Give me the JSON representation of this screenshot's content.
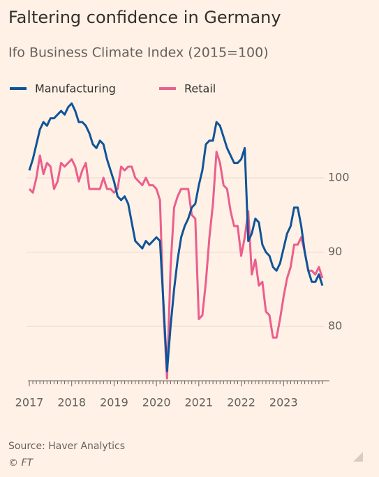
{
  "chart_data": {
    "type": "line",
    "title": "Faltering confidence in Germany",
    "subtitle": "Ifo Business Climate Index (2015=100)",
    "source": "Source: Haver Analytics",
    "credit": "© FT",
    "categories": [
      "2017",
      null,
      null,
      null,
      null,
      null,
      null,
      null,
      null,
      null,
      null,
      null,
      "2018",
      null,
      null,
      null,
      null,
      null,
      null,
      null,
      null,
      null,
      null,
      null,
      "2019",
      null,
      null,
      null,
      null,
      null,
      null,
      null,
      null,
      null,
      null,
      null,
      "2020",
      null,
      null,
      null,
      null,
      null,
      null,
      null,
      null,
      null,
      null,
      null,
      "2021",
      null,
      null,
      null,
      null,
      null,
      null,
      null,
      null,
      null,
      null,
      null,
      "2022",
      null,
      null,
      null,
      null,
      null,
      null,
      null,
      null,
      null,
      null,
      null,
      "2023",
      null,
      null,
      null,
      null,
      null,
      null,
      null,
      null,
      null,
      null,
      null
    ],
    "series": [
      {
        "name": "Manufacturing",
        "color": "#0f5499",
        "values": [
          101,
          102.5,
          104.5,
          106.5,
          107.5,
          107,
          108,
          108,
          108.5,
          109,
          108.5,
          109.5,
          110,
          109,
          107.5,
          107.5,
          107,
          106,
          104.5,
          104,
          105,
          104.5,
          102.5,
          101,
          99.5,
          97.5,
          97,
          97.5,
          96.5,
          94,
          91.5,
          91,
          90.5,
          91.5,
          91,
          91.5,
          92,
          91.5,
          83,
          74,
          80,
          85,
          89,
          92,
          93.5,
          94.5,
          96,
          96.5,
          99,
          101,
          104.5,
          105,
          105,
          107.5,
          107,
          105.5,
          104,
          103,
          102,
          102,
          102.5,
          104,
          91.5,
          92.5,
          94.5,
          94,
          91,
          90,
          89.5,
          88,
          87.5,
          88.5,
          90.5,
          92.5,
          93.5,
          96,
          96,
          93.5,
          90,
          87.5,
          86,
          86,
          87,
          85.5
        ]
      },
      {
        "name": "Retail",
        "color": "#eb5e8d",
        "values": [
          98.5,
          98,
          100,
          103,
          100.5,
          102,
          101.5,
          98.5,
          99.5,
          102,
          101.5,
          102,
          102.5,
          101.5,
          99.5,
          101,
          102,
          98.5,
          98.5,
          98.5,
          98.5,
          100,
          98.5,
          98.5,
          98,
          98.5,
          101.5,
          101,
          101.5,
          101.5,
          100,
          99.5,
          99,
          100,
          99,
          99,
          98.5,
          97,
          82,
          73,
          88,
          96,
          97.5,
          98.5,
          98.5,
          98.5,
          95,
          94.5,
          81,
          81.5,
          86,
          92,
          96.5,
          103.5,
          102,
          99,
          98.5,
          95.5,
          93.5,
          93.5,
          89.5,
          92,
          95.5,
          87,
          89,
          85.5,
          86,
          82,
          81.5,
          78.5,
          78.5,
          81,
          84,
          86.5,
          88,
          91,
          91,
          92,
          90,
          87.5,
          87.5,
          87,
          88,
          86.5
        ]
      }
    ],
    "ylim": [
      72.7,
      110.5
    ],
    "yticks": [
      80,
      90,
      100
    ],
    "grid": true
  }
}
